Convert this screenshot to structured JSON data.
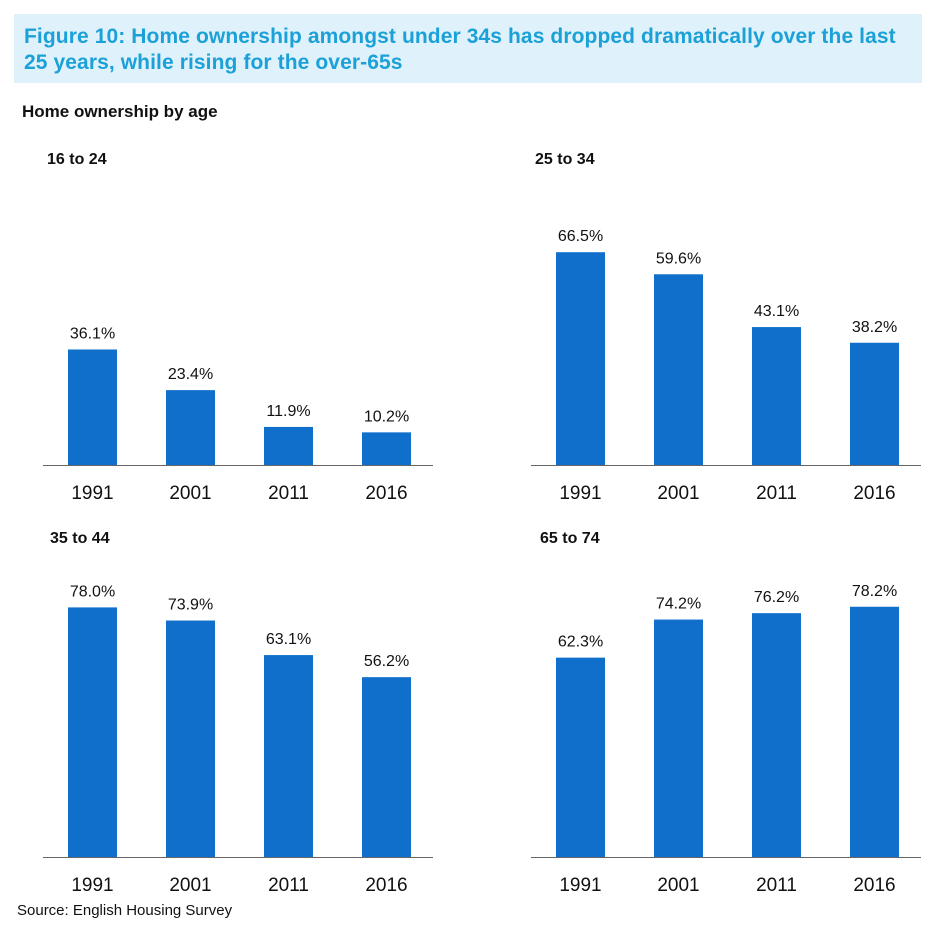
{
  "banner": {
    "title": "Figure 10: Home ownership amongst under 34s has dropped dramatically over the last 25 years, while rising for the over-65s"
  },
  "subtitle": "Home ownership by age",
  "source": "Source: English Housing Survey",
  "colors": {
    "bar": "#0f6fca",
    "axis": "#666666",
    "banner_bg": "#dff1fb",
    "banner_text": "#1ba1d8"
  },
  "chart_data": [
    {
      "type": "bar",
      "title": "16 to 24",
      "categories": [
        "1991",
        "2001",
        "2011",
        "2016"
      ],
      "values": [
        36.1,
        23.4,
        11.9,
        10.2
      ],
      "labels": [
        "36.1%",
        "23.4%",
        "11.9%",
        "10.2%"
      ]
    },
    {
      "type": "bar",
      "title": "25 to 34",
      "categories": [
        "1991",
        "2001",
        "2011",
        "2016"
      ],
      "values": [
        66.5,
        59.6,
        43.1,
        38.2
      ],
      "labels": [
        "66.5%",
        "59.6%",
        "43.1%",
        "38.2%"
      ]
    },
    {
      "type": "bar",
      "title": "35 to 44",
      "categories": [
        "1991",
        "2001",
        "2011",
        "2016"
      ],
      "values": [
        78.0,
        73.9,
        63.1,
        56.2
      ],
      "labels": [
        "78.0%",
        "73.9%",
        "63.1%",
        "56.2%"
      ]
    },
    {
      "type": "bar",
      "title": "65 to 74",
      "categories": [
        "1991",
        "2001",
        "2011",
        "2016"
      ],
      "values": [
        62.3,
        74.2,
        76.2,
        78.2
      ],
      "labels": [
        "62.3%",
        "74.2%",
        "76.2%",
        "78.2%"
      ]
    }
  ]
}
